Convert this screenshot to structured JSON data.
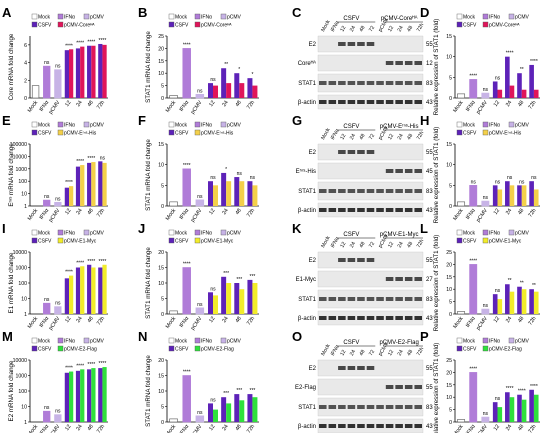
{
  "figure": {
    "panel_letters": [
      "A",
      "B",
      "C",
      "D",
      "E",
      "F",
      "G",
      "H",
      "I",
      "J",
      "K",
      "L",
      "M",
      "N",
      "O",
      "P"
    ]
  },
  "colors": {
    "mock": "#ffffff",
    "ifna": "#b07cd8",
    "pcmv": "#c7b3e6",
    "csfv": "#5d22b8",
    "core_ha": "#e0155a",
    "erns_his": "#f4d04a",
    "e1_myc": "#f2ec2a",
    "e2_flag": "#2fe03c",
    "dark": "#000000"
  },
  "chart_data": [
    {
      "panel": "A",
      "type": "bar",
      "ylabel": "Core mRNA fold change",
      "ylim": [
        0,
        7
      ],
      "log_scale": false,
      "categories": [
        "Mock",
        "IFNα",
        "pCMV",
        "12",
        "24",
        "48",
        "72h"
      ],
      "series": [
        {
          "name": "CSFV",
          "values": [
            null,
            null,
            null,
            5.4,
            5.6,
            5.9,
            6.1
          ]
        },
        {
          "name": "pCMV-Coreᴴᴬ",
          "values": [
            null,
            null,
            null,
            5.5,
            5.8,
            5.9,
            6.0
          ]
        }
      ],
      "single_values": [
        1.4,
        3.6,
        3.2
      ],
      "significance": [
        "",
        "ns",
        "ns",
        "****",
        "****",
        "****",
        "****"
      ],
      "legend": [
        "Mock",
        "IFNα",
        "pCMV",
        "CSFV",
        "pCMV-Coreᴴᴬ"
      ]
    },
    {
      "panel": "B",
      "type": "bar",
      "ylabel": "STAT1 mRNA fold change",
      "ylim": [
        0,
        25
      ],
      "categories": [
        "Mock",
        "IFNα",
        "pCMV",
        "12",
        "24",
        "48",
        "72h"
      ],
      "series": [
        {
          "name": "CSFV",
          "values": [
            null,
            null,
            null,
            6,
            12,
            10,
            8
          ]
        },
        {
          "name": "pCMV-Coreᴴᴬ",
          "values": [
            null,
            null,
            null,
            5,
            6,
            6,
            5
          ]
        }
      ],
      "single_values": [
        1,
        20,
        1.5
      ],
      "significance": [
        "",
        "****",
        "ns",
        "ns",
        "**",
        "*",
        "*"
      ],
      "legend": [
        "Mock",
        "IFNα",
        "pCMV",
        "CSFV",
        "pCMV-Coreᴴᴬ"
      ]
    },
    {
      "panel": "D",
      "type": "bar",
      "ylabel": "Relative expression of STAT1 (fold)",
      "ylim": [
        0,
        15
      ],
      "categories": [
        "Mock",
        "IFNα",
        "pCMV",
        "12",
        "24",
        "48",
        "72h"
      ],
      "series": [
        {
          "name": "CSFV",
          "values": [
            null,
            null,
            null,
            4,
            10,
            6,
            8
          ]
        },
        {
          "name": "pCMV-Coreᴴᴬ",
          "values": [
            null,
            null,
            null,
            2,
            3,
            2,
            2
          ]
        }
      ],
      "single_values": [
        1,
        4.5,
        1.2
      ],
      "significance": [
        "",
        "****",
        "ns",
        "ns",
        "****",
        "**",
        "****"
      ],
      "legend": [
        "Mock",
        "IFNα",
        "pCMV",
        "CSFV",
        "pCMV-Coreᴴᴬ"
      ]
    },
    {
      "panel": "E",
      "type": "bar",
      "ylabel": "Eʳⁿˢ mRNA fold change",
      "ylim": [
        1,
        100000
      ],
      "log_scale": true,
      "categories": [
        "Mock",
        "IFNα",
        "pCMV",
        "12",
        "24",
        "48",
        "72h"
      ],
      "series": [
        {
          "name": "CSFV",
          "values": [
            null,
            null,
            null,
            30,
            1500,
            3000,
            4000
          ]
        },
        {
          "name": "pCMV-Eʳⁿˢ-His",
          "values": [
            null,
            null,
            null,
            40,
            2000,
            3500,
            3000
          ]
        }
      ],
      "single_values": [
        1,
        3,
        2
      ],
      "significance": [
        "",
        "ns",
        "ns",
        "****",
        "****",
        "****",
        "ns"
      ],
      "legend": [
        "Mock",
        "IFNα",
        "pCMV",
        "CSFV",
        "pCMV-Eʳⁿˢ-His"
      ]
    },
    {
      "panel": "F",
      "type": "bar",
      "ylabel": "STAT1 mRNA fold change",
      "ylim": [
        0,
        15
      ],
      "categories": [
        "Mock",
        "IFNα",
        "pCMV",
        "12",
        "24",
        "48",
        "72h"
      ],
      "series": [
        {
          "name": "CSFV",
          "values": [
            null,
            null,
            null,
            6,
            8,
            7,
            6
          ]
        },
        {
          "name": "pCMV-Eʳⁿˢ-His",
          "values": [
            null,
            null,
            null,
            5,
            6,
            6,
            5
          ]
        }
      ],
      "single_values": [
        1,
        9,
        1.5
      ],
      "significance": [
        "",
        "****",
        "ns",
        "ns",
        "*",
        "ns",
        "ns"
      ],
      "legend": [
        "Mock",
        "IFNα",
        "pCMV",
        "CSFV",
        "pCMV-Eʳⁿˢ-His"
      ]
    },
    {
      "panel": "H",
      "type": "bar",
      "ylabel": "Relative expression of STAT1 (fold)",
      "ylim": [
        0,
        15
      ],
      "categories": [
        "Mock",
        "IFNα",
        "pCMV",
        "12",
        "24",
        "48",
        "72h"
      ],
      "series": [
        {
          "name": "CSFV",
          "values": [
            null,
            null,
            null,
            5,
            6,
            5,
            6
          ]
        },
        {
          "name": "pCMV-Eʳⁿˢ-His",
          "values": [
            null,
            null,
            null,
            4,
            5,
            5,
            4
          ]
        }
      ],
      "single_values": [
        1,
        5,
        1.2
      ],
      "significance": [
        "",
        "ns",
        "ns",
        "ns",
        "ns",
        "ns",
        "ns"
      ],
      "legend": [
        "Mock",
        "IFNα",
        "pCMV",
        "CSFV",
        "pCMV-Eʳⁿˢ-His"
      ]
    },
    {
      "panel": "I",
      "type": "bar",
      "ylabel": "E1 mRNA fold change",
      "ylim": [
        1,
        10000
      ],
      "log_scale": true,
      "categories": [
        "Mock",
        "IFNα",
        "pCMV",
        "12",
        "24",
        "48",
        "72h"
      ],
      "series": [
        {
          "name": "CSFV",
          "values": [
            null,
            null,
            null,
            200,
            1000,
            1500,
            1000
          ]
        },
        {
          "name": "pCMV-E1-Myc",
          "values": [
            null,
            null,
            null,
            300,
            1200,
            1000,
            1500
          ]
        }
      ],
      "single_values": [
        1,
        5,
        3
      ],
      "significance": [
        "",
        "ns",
        "ns",
        "****",
        "****",
        "****",
        "****"
      ],
      "legend": [
        "Mock",
        "IFNα",
        "pCMV",
        "CSFV",
        "pCMV-E1-Myc"
      ]
    },
    {
      "panel": "J",
      "type": "bar",
      "ylabel": "STAT1 mRNA fold change",
      "ylim": [
        0,
        20
      ],
      "categories": [
        "Mock",
        "IFNα",
        "pCMV",
        "12",
        "24",
        "48",
        "72h"
      ],
      "series": [
        {
          "name": "CSFV",
          "values": [
            null,
            null,
            null,
            7,
            12,
            10,
            11
          ]
        },
        {
          "name": "pCMV-E1-Myc",
          "values": [
            null,
            null,
            null,
            6,
            10,
            8,
            10
          ]
        }
      ],
      "single_values": [
        1,
        15,
        2
      ],
      "significance": [
        "",
        "****",
        "ns",
        "ns",
        "***",
        "***",
        "***"
      ],
      "legend": [
        "Mock",
        "IFNα",
        "pCMV",
        "CSFV",
        "pCMV-E1-Myc"
      ]
    },
    {
      "panel": "L",
      "type": "bar",
      "ylabel": "Relative expression of STAT1 (fold)",
      "ylim": [
        0,
        25
      ],
      "categories": [
        "Mock",
        "IFNα",
        "pCMV",
        "12",
        "24",
        "48",
        "72h"
      ],
      "series": [
        {
          "name": "CSFV",
          "values": [
            null,
            null,
            null,
            8,
            12,
            11,
            10
          ]
        },
        {
          "name": "pCMV-E1-Myc",
          "values": [
            null,
            null,
            null,
            6,
            9,
            10,
            9
          ]
        }
      ],
      "single_values": [
        1,
        20,
        2
      ],
      "significance": [
        "",
        "****",
        "ns",
        "ns",
        "**",
        "**",
        "**"
      ],
      "legend": [
        "Mock",
        "IFNα",
        "pCMV",
        "CSFV",
        "pCMV-E1-Myc"
      ]
    },
    {
      "panel": "M",
      "type": "bar",
      "ylabel": "E2 mRNA fold change",
      "ylim": [
        1,
        10000
      ],
      "log_scale": true,
      "categories": [
        "Mock",
        "IFNα",
        "pCMV",
        "12",
        "24",
        "48",
        "72h"
      ],
      "series": [
        {
          "name": "CSFV",
          "values": [
            null,
            null,
            null,
            1500,
            2000,
            2500,
            3000
          ]
        },
        {
          "name": "pCMV-E2-Flag",
          "values": [
            null,
            null,
            null,
            1800,
            2500,
            3000,
            3500
          ]
        }
      ],
      "single_values": [
        1,
        5,
        3
      ],
      "significance": [
        "",
        "ns",
        "ns",
        "****",
        "****",
        "****",
        "****"
      ],
      "legend": [
        "Mock",
        "IFNα",
        "pCMV",
        "CSFV",
        "pCMV-E2-Flag"
      ]
    },
    {
      "panel": "N",
      "type": "bar",
      "ylabel": "STAT1 mRNA fold change",
      "ylim": [
        0,
        20
      ],
      "categories": [
        "Mock",
        "IFNα",
        "pCMV",
        "12",
        "24",
        "48",
        "72h"
      ],
      "series": [
        {
          "name": "CSFV",
          "values": [
            null,
            null,
            null,
            6,
            8,
            9,
            9
          ]
        },
        {
          "name": "pCMV-E2-Flag",
          "values": [
            null,
            null,
            null,
            4,
            6,
            7,
            8
          ]
        }
      ],
      "single_values": [
        1,
        15,
        2
      ],
      "significance": [
        "",
        "****",
        "ns",
        "ns",
        "***",
        "***",
        "***"
      ],
      "legend": [
        "Mock",
        "IFNα",
        "pCMV",
        "CSFV",
        "pCMV-E2-Flag"
      ]
    },
    {
      "panel": "P",
      "type": "bar",
      "ylabel": "Relative expression of STAT1 (fold)",
      "ylim": [
        0,
        25
      ],
      "categories": [
        "Mock",
        "IFNα",
        "pCMV",
        "12",
        "24",
        "48",
        "72h"
      ],
      "series": [
        {
          "name": "CSFV",
          "values": [
            null,
            null,
            null,
            8,
            12,
            11,
            13
          ]
        },
        {
          "name": "pCMV-E2-Flag",
          "values": [
            null,
            null,
            null,
            6,
            10,
            9,
            11
          ]
        }
      ],
      "single_values": [
        1,
        20,
        2
      ],
      "significance": [
        "",
        "****",
        "ns",
        "ns",
        "****",
        "****",
        "****"
      ],
      "legend": [
        "Mock",
        "IFNα",
        "pCMV",
        "CSFV",
        "pCMV-E2-Flag"
      ]
    }
  ],
  "blots": [
    {
      "panel": "C",
      "lanes": [
        "Mock",
        "IFNα",
        "12",
        "24",
        "48",
        "72",
        "pCMV",
        "12",
        "24",
        "48",
        "72h"
      ],
      "groups": [
        "CSFV",
        "pCMV-Coreᴴᴬ"
      ],
      "rows": [
        "E2",
        "Coreᴴᴬ",
        "STAT1",
        "β-actin"
      ],
      "mw": [
        "55",
        "12",
        "83",
        "43"
      ]
    },
    {
      "panel": "G",
      "lanes": [
        "Mock",
        "IFNα",
        "12",
        "24",
        "48",
        "72",
        "pCMV",
        "12",
        "24",
        "48",
        "72h"
      ],
      "groups": [
        "CSFV",
        "pCMV-Eʳⁿˢ-His"
      ],
      "rows": [
        "E2",
        "Eʳⁿˢ-His",
        "STAT1",
        "β-actin"
      ],
      "mw": [
        "55",
        "45",
        "83",
        "43"
      ]
    },
    {
      "panel": "K",
      "lanes": [
        "Mock",
        "IFNα",
        "12",
        "24",
        "48",
        "72",
        "pCMV",
        "12",
        "24",
        "48",
        "72h"
      ],
      "groups": [
        "CSFV",
        "pCMV-E1-Myc"
      ],
      "rows": [
        "E2",
        "E1-Myc",
        "STAT1",
        "β-actin"
      ],
      "mw": [
        "55",
        "27",
        "83",
        "43"
      ]
    },
    {
      "panel": "O",
      "lanes": [
        "Mock",
        "IFNα",
        "12",
        "24",
        "48",
        "72",
        "pCMV",
        "12",
        "24",
        "48",
        "72h"
      ],
      "groups": [
        "CSFV",
        "pCMV-E2-Flag"
      ],
      "rows": [
        "E2",
        "E2-Flag",
        "STAT1",
        "β-actin"
      ],
      "mw": [
        "55",
        "55",
        "83",
        "43"
      ]
    }
  ]
}
